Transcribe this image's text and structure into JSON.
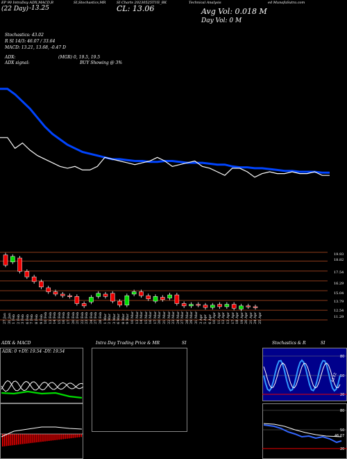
{
  "header": {
    "line1": {
      "left": "EP 90 IntraDay ADX,MACD,B",
      "left_b": "SI,Stochastics,MR",
      "mid": "SI Charts 20230525TUE_BK",
      "right": "Technical Analysis",
      "right_b": "ed MunafaSutra.com"
    },
    "topbar": "(22 Day)",
    "topbar_values": "-13.25",
    "close_label": "CL: 13.06",
    "avg_vol": "Avg Vol: 0.018 M",
    "day_vol": "Day Vol: 0 M",
    "stoch": "Stochastics: 43.02",
    "rsi": "R  SI 14/3: 46.07 / 33.64",
    "macd": "MACD: 13.21, 13.68, -0.47 D",
    "adx": "ADX:",
    "adx_vals": "(MGR) 0, 19.5, 19.5",
    "adx_signal": "ADX signal:",
    "signal_text": "BUY Showing @ 3%"
  },
  "price_axis": [
    "19.93",
    "18.82",
    "17.54",
    "16.29",
    "15.04",
    "13.79",
    "12.54",
    "11.29"
  ],
  "date_labels": [
    "27 Jan",
    "31 Jan",
    "1 Feb",
    "2 Feb",
    "3 Feb",
    "6 Feb",
    "7 Feb",
    "8 Feb",
    "9 Feb",
    "10 Feb",
    "13 Feb",
    "14 Feb",
    "15 Feb",
    "16 Feb",
    "17 Feb",
    "20 Feb",
    "21 Feb",
    "22 Feb",
    "23 Feb",
    "24 Feb",
    "27 Feb",
    "28 Feb",
    "1 Mar",
    "2 Mar",
    "3 Mar",
    "6 Mar",
    "8 Mar",
    "9 Mar",
    "10 Mar",
    "13 Mar",
    "14 Mar",
    "15 Mar",
    "16 Mar",
    "17 Mar",
    "20 Mar",
    "21 Mar",
    "22 Mar",
    "23 Mar",
    "24 Mar",
    "27 Mar",
    "28 Mar",
    "29 Mar",
    "31 Mar",
    "3 Apr",
    "5 Apr",
    "6 Apr",
    "10 Apr",
    "11 Apr",
    "12 Apr",
    "13 Apr",
    "17 Apr",
    "18 Apr",
    "19 Apr",
    "20 Apr",
    "21 Apr",
    "24 Apr",
    "25 Apr"
  ],
  "panels": {
    "adx_title": "ADX  & MACD",
    "adx_readout": "ADX: 0  +DY: 19.54  -DY: 19.54",
    "intraday_title": "Intra  Day Trading Price  & MR",
    "intraday_title_b": "SI",
    "stoch_title": "Stochastics & R",
    "stoch_title_b": "SI",
    "stoch_levels": [
      "80",
      "50",
      "20"
    ],
    "rsi_levels": [
      "80",
      "50",
      "20"
    ],
    "stoch_value": "43.02",
    "rsi_value": "46.07"
  },
  "chart_data": {
    "type": "line",
    "series": [
      {
        "values": [
          17.9,
          17.9,
          17.6,
          17.2,
          16.8,
          16.3,
          15.8,
          15.4,
          15.1,
          14.8,
          14.6,
          14.4,
          14.3,
          14.2,
          14.1,
          14.0,
          14.0,
          13.95,
          13.9,
          13.9,
          13.85,
          13.85,
          13.9,
          13.9,
          13.85,
          13.8,
          13.8,
          13.8,
          13.75,
          13.7,
          13.7,
          13.6,
          13.55,
          13.55,
          13.5,
          13.5,
          13.45,
          13.4,
          13.35,
          13.35,
          13.3,
          13.3,
          13.3,
          13.25,
          13.25
        ]
      },
      {
        "values": [
          15.2,
          15.2,
          14.6,
          14.9,
          14.5,
          14.2,
          14.0,
          13.8,
          13.6,
          13.5,
          13.6,
          13.4,
          13.4,
          13.6,
          14.1,
          14.0,
          13.9,
          13.8,
          13.7,
          13.8,
          13.9,
          14.1,
          13.9,
          13.6,
          13.7,
          13.8,
          13.9,
          13.6,
          13.5,
          13.3,
          13.1,
          13.5,
          13.5,
          13.3,
          13.0,
          13.2,
          13.3,
          13.2,
          13.2,
          13.3,
          13.2,
          13.2,
          13.3,
          13.1,
          13.1
        ]
      }
    ],
    "candles": [
      {
        "o": 19.6,
        "c": 18.3
      },
      {
        "o": 18.7,
        "c": 19.4
      },
      {
        "o": 19.2,
        "c": 17.5
      },
      {
        "o": 17.5,
        "c": 16.8
      },
      {
        "o": 16.8,
        "c": 16.2
      },
      {
        "o": 16.2,
        "c": 15.5
      },
      {
        "o": 15.4,
        "c": 14.9
      },
      {
        "o": 14.9,
        "c": 14.6
      },
      {
        "o": 14.6,
        "c": 14.4
      },
      {
        "o": 14.4,
        "c": 14.3
      },
      {
        "o": 14.3,
        "c": 13.4
      },
      {
        "o": 13.4,
        "c": 13.1
      },
      {
        "o": 13.6,
        "c": 14.2
      },
      {
        "o": 14.3,
        "c": 14.7
      },
      {
        "o": 14.6,
        "c": 14.3
      },
      {
        "o": 14.7,
        "c": 13.7
      },
      {
        "o": 13.7,
        "c": 13.2
      },
      {
        "o": 13.2,
        "c": 14.4
      },
      {
        "o": 14.6,
        "c": 14.9
      },
      {
        "o": 14.9,
        "c": 14.4
      },
      {
        "o": 14.4,
        "c": 14.0
      },
      {
        "o": 13.7,
        "c": 14.3
      },
      {
        "o": 14.2,
        "c": 13.9
      },
      {
        "o": 14.1,
        "c": 14.5
      },
      {
        "o": 14.5,
        "c": 13.4
      },
      {
        "o": 13.4,
        "c": 13.1
      },
      {
        "o": 13.1,
        "c": 13.3
      },
      {
        "o": 13.3,
        "c": 13.2
      },
      {
        "o": 13.2,
        "c": 12.9
      },
      {
        "o": 12.9,
        "c": 13.2
      },
      {
        "o": 13.3,
        "c": 13.0
      },
      {
        "o": 13.0,
        "c": 13.3
      },
      {
        "o": 13.3,
        "c": 12.8
      },
      {
        "o": 12.7,
        "c": 13.1
      },
      {
        "o": 13.1,
        "c": 13.0
      },
      {
        "o": 13.0,
        "c": 12.9
      }
    ],
    "volume": [
      {
        "values": [
          1.0,
          0.95,
          0.9,
          0.8,
          0.7,
          0.6,
          0.5,
          0.4
        ]
      }
    ]
  }
}
